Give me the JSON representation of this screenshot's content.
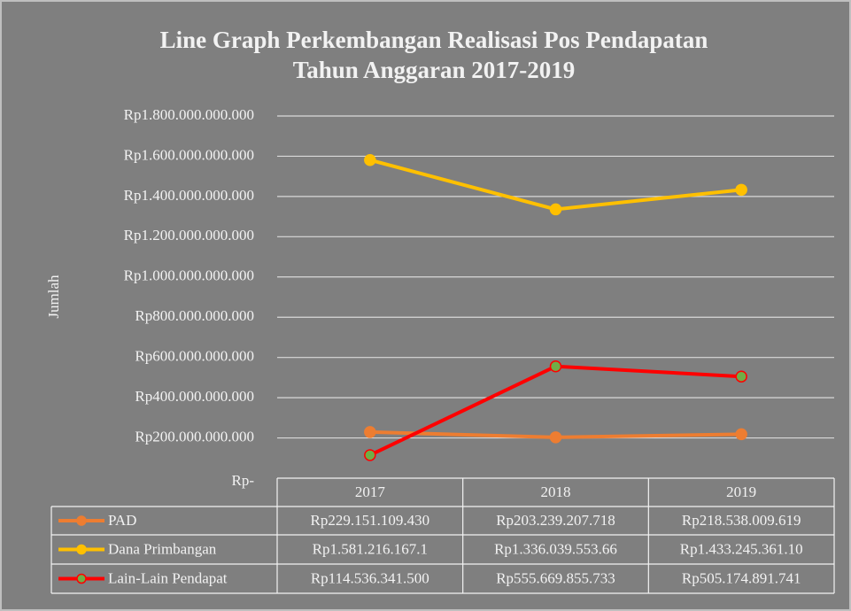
{
  "chart_data": {
    "type": "line",
    "title": [
      "Line Graph Perkembangan Realisasi Pos Pendapatan",
      "Tahun Anggaran 2017-2019"
    ],
    "y_label": "Jumlah",
    "categories": [
      "2017",
      "2018",
      "2019"
    ],
    "series": [
      {
        "name": "PAD",
        "color": "#ed7d31",
        "marker_fill": "#ed7d31",
        "values": [
          229151109430,
          203239207718,
          218538009619
        ],
        "value_labels": [
          "Rp229.151.109.430",
          "Rp203.239.207.718",
          "Rp218.538.009.619"
        ]
      },
      {
        "name": "Dana Primbangan",
        "color": "#ffc000",
        "marker_fill": "#ffc000",
        "values": [
          1581216167100,
          1336039553660,
          1433245361100
        ],
        "value_labels": [
          "Rp1.581.216.167.1",
          "Rp1.336.039.553.66",
          "Rp1.433.245.361.10"
        ]
      },
      {
        "name": "Lain-Lain Pendapat",
        "color": "#ff0000",
        "marker_fill": "#70ad47",
        "values": [
          114536341500,
          555669855733,
          505174891741
        ],
        "value_labels": [
          "Rp114.536.341.500",
          "Rp555.669.855.733",
          "Rp505.174.891.741"
        ]
      }
    ],
    "ylim": [
      0,
      1800000000000
    ],
    "yticks": [
      {
        "value": 0,
        "label": "Rp-"
      },
      {
        "value": 200000000000,
        "label": "Rp200.000.000.000"
      },
      {
        "value": 400000000000,
        "label": "Rp400.000.000.000"
      },
      {
        "value": 600000000000,
        "label": "Rp600.000.000.000"
      },
      {
        "value": 800000000000,
        "label": "Rp800.000.000.000"
      },
      {
        "value": 1000000000000,
        "label": "Rp1.000.000.000.000"
      },
      {
        "value": 1200000000000,
        "label": "Rp1.200.000.000.000"
      },
      {
        "value": 1400000000000,
        "label": "Rp1.400.000.000.000"
      },
      {
        "value": 1600000000000,
        "label": "Rp1.600.000.000.000"
      },
      {
        "value": 1800000000000,
        "label": "Rp1.800.000.000.000"
      }
    ],
    "grid": true
  }
}
